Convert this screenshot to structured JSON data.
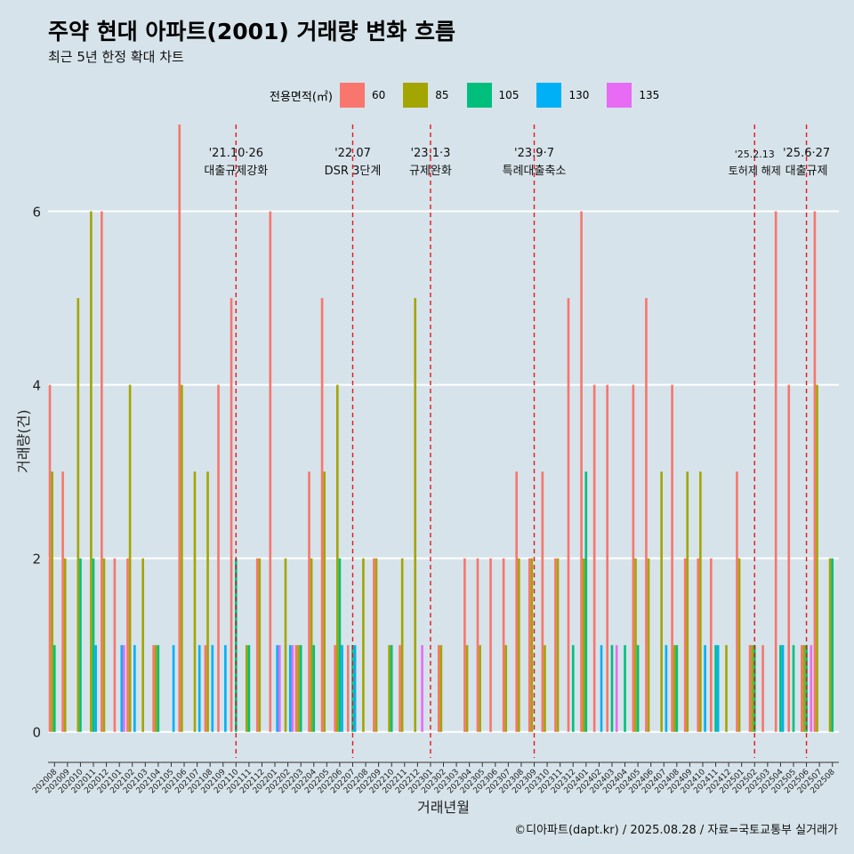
{
  "title": "주약 현대 아파트(2001) 거래량 변화 흐름",
  "subtitle": "최근 5년 한정 확대 차트",
  "legend_title": "전용면적(㎡)",
  "caption": "©디아파트(dapt.kr) / 2025.08.28 / 자료=국토교통부 실거래가",
  "colors": {
    "60": "#f8766d",
    "85": "#a3a500",
    "105": "#00bf7d",
    "130": "#00b0f6",
    "135": "#e76bf3",
    "vline": "#e8141a",
    "grid": "#ffffff"
  },
  "chart_data": {
    "type": "bar",
    "xlabel": "거래년월",
    "ylabel": "거래량(건)",
    "ylim": [
      -0.3,
      7.0
    ],
    "yticks": [
      0,
      2,
      4,
      6
    ],
    "categories": [
      "202008",
      "202009",
      "202010",
      "202011",
      "202012",
      "202101",
      "202102",
      "202103",
      "202104",
      "202105",
      "202106",
      "202107",
      "202108",
      "202109",
      "202110",
      "202111",
      "202112",
      "202201",
      "202202",
      "202203",
      "202204",
      "202205",
      "202206",
      "202207",
      "202208",
      "202209",
      "202210",
      "202211",
      "202212",
      "202301",
      "202302",
      "202303",
      "202304",
      "202305",
      "202306",
      "202307",
      "202308",
      "202309",
      "202310",
      "202311",
      "202312",
      "202401",
      "202402",
      "202403",
      "202404",
      "202405",
      "202406",
      "202407",
      "202408",
      "202409",
      "202410",
      "202411",
      "202412",
      "202501",
      "202502",
      "202503",
      "202504",
      "202505",
      "202506",
      "202507",
      "202508"
    ],
    "series": [
      {
        "name": "60",
        "values": [
          4,
          3,
          0,
          0,
          6,
          2,
          2,
          0,
          1,
          0,
          7,
          0,
          1,
          4,
          5,
          0,
          2,
          6,
          0,
          1,
          3,
          5,
          1,
          1,
          0,
          2,
          0,
          1,
          0,
          0,
          1,
          0,
          2,
          2,
          2,
          2,
          3,
          2,
          3,
          2,
          5,
          6,
          4,
          4,
          0,
          4,
          5,
          0,
          4,
          2,
          2,
          2,
          0,
          3,
          1,
          1,
          6,
          4,
          1,
          6,
          0
        ]
      },
      {
        "name": "85",
        "values": [
          3,
          2,
          5,
          6,
          2,
          0,
          4,
          2,
          1,
          0,
          4,
          3,
          3,
          0,
          0,
          1,
          2,
          0,
          2,
          1,
          2,
          3,
          4,
          0,
          2,
          2,
          1,
          2,
          5,
          0,
          1,
          0,
          1,
          1,
          0,
          1,
          2,
          2,
          1,
          2,
          0,
          2,
          0,
          0,
          0,
          2,
          2,
          3,
          1,
          3,
          3,
          0,
          1,
          2,
          1,
          0,
          0,
          0,
          1,
          4,
          2
        ]
      },
      {
        "name": "105",
        "values": [
          1,
          0,
          2,
          2,
          0,
          0,
          0,
          0,
          1,
          0,
          0,
          0,
          0,
          0,
          2,
          1,
          0,
          0,
          0,
          1,
          1,
          0,
          2,
          1,
          0,
          0,
          1,
          0,
          0,
          0,
          0,
          0,
          0,
          0,
          0,
          0,
          0,
          0,
          0,
          0,
          1,
          3,
          0,
          1,
          1,
          1,
          0,
          0,
          1,
          0,
          0,
          1,
          0,
          0,
          1,
          0,
          1,
          1,
          1,
          0,
          2
        ]
      },
      {
        "name": "130",
        "values": [
          0,
          0,
          0,
          1,
          0,
          1,
          1,
          0,
          0,
          1,
          0,
          1,
          1,
          1,
          0,
          0,
          0,
          1,
          1,
          0,
          0,
          0,
          1,
          1,
          0,
          0,
          0,
          0,
          0,
          0,
          0,
          0,
          0,
          0,
          0,
          0,
          0,
          0,
          0,
          0,
          0,
          0,
          1,
          0,
          0,
          0,
          0,
          1,
          0,
          0,
          1,
          1,
          0,
          0,
          0,
          0,
          1,
          0,
          0,
          0,
          0
        ]
      },
      {
        "name": "135",
        "values": [
          0,
          0,
          0,
          0,
          0,
          1,
          0,
          0,
          0,
          0,
          0,
          0,
          0,
          0,
          0,
          0,
          0,
          1,
          1,
          0,
          0,
          0,
          0,
          0,
          0,
          0,
          0,
          0,
          1,
          0,
          0,
          0,
          0,
          0,
          0,
          0,
          0,
          0,
          0,
          0,
          0,
          0,
          0,
          1,
          0,
          0,
          0,
          0,
          0,
          0,
          0,
          0,
          0,
          0,
          0,
          0,
          0,
          0,
          1,
          0,
          0
        ]
      }
    ],
    "events": [
      {
        "date": "'21.10·26",
        "label": "대출규제강화",
        "month": "202110"
      },
      {
        "date": "'22.07",
        "label": "DSR 3단계",
        "month": "202207"
      },
      {
        "date": "'23.1·3",
        "label": "규제완화",
        "month": "202301"
      },
      {
        "date": "'23.9·7",
        "label": "특례대출축소",
        "month": "202309"
      },
      {
        "date": "'25.2.13",
        "label": "토허제 해제",
        "month": "202502"
      },
      {
        "date": "'25.6·27",
        "label": "대출규제",
        "month": "202506"
      }
    ]
  }
}
